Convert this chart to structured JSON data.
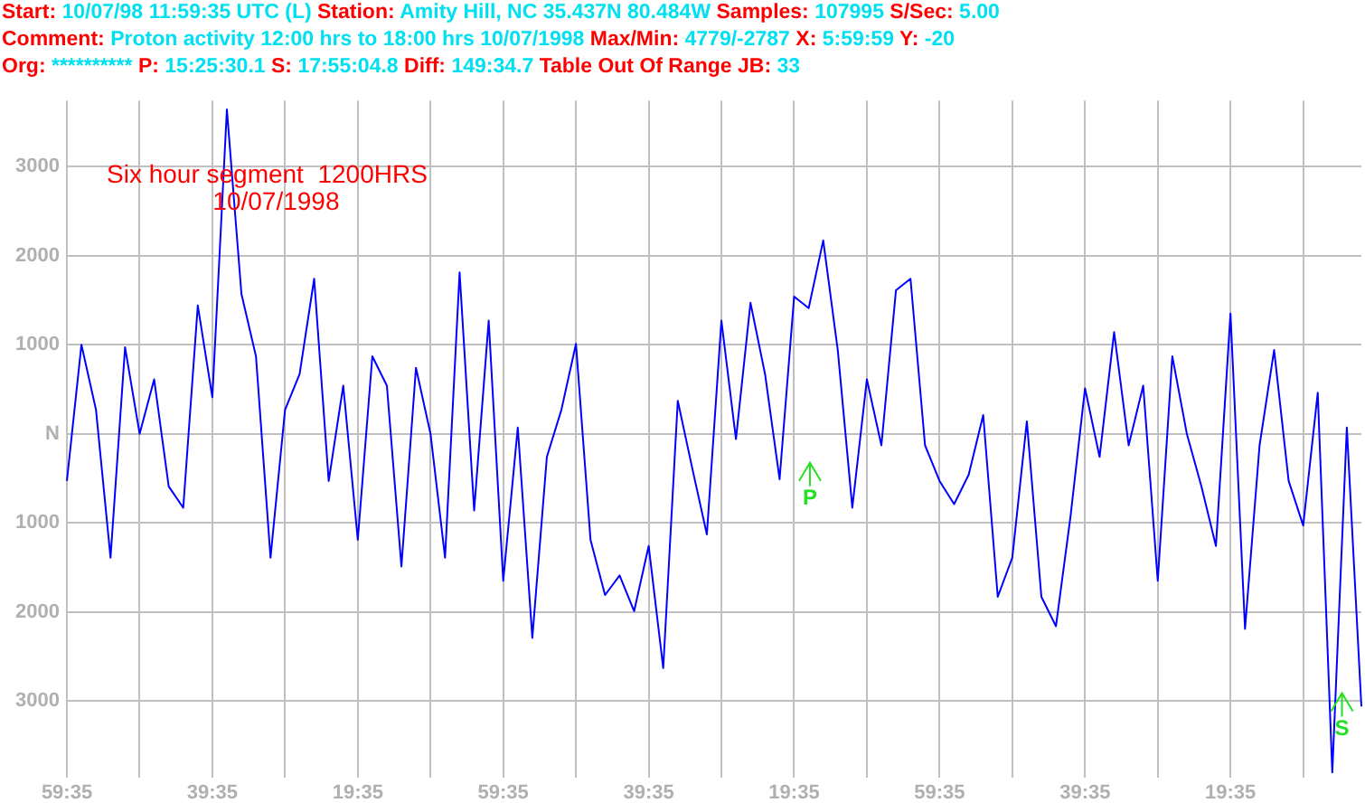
{
  "chart_data": {
    "type": "line",
    "title": "Six hour segment  1200HRS",
    "subtitle": "10/07/1998",
    "annotations": [
      "Start:",
      "10/07/98 11:59:35 UTC (L)",
      "Station:",
      "Amity Hill, NC 35.437N 80.484W",
      "Samples:",
      "107995",
      "S/Sec:",
      "5.00",
      "Comment:",
      "Proton activity 12:00 hrs to 18:00 hrs 10/07/1998",
      "Max/Min:",
      "4779/-2787",
      "X:",
      "5:59:59",
      "Y:",
      "-20",
      "Org:",
      "**********",
      "P:",
      "15:25:30.1",
      "S:",
      "17:55:04.8",
      "Diff:",
      "149:34.7",
      "Table Out Of Range  JB:",
      "33",
      "P",
      "S"
    ],
    "categories": [
      "59:35",
      null,
      null,
      null,
      null,
      null,
      null,
      null,
      null,
      null,
      "39:35",
      null,
      null,
      null,
      null,
      null,
      null,
      null,
      null,
      null,
      "19:35",
      null,
      null,
      null,
      null,
      null,
      null,
      null,
      null,
      null,
      "59:35",
      null,
      null,
      null,
      null,
      null,
      null,
      null,
      null,
      null,
      "39:35",
      null,
      null,
      null,
      null,
      null,
      null,
      null,
      null,
      null,
      "19:35",
      null,
      null,
      null,
      null,
      null,
      null,
      null,
      null,
      null,
      "59:35",
      null,
      null,
      null,
      null,
      null,
      null,
      null,
      null,
      null,
      "39:35",
      null,
      null,
      null,
      null,
      null,
      null,
      null,
      null,
      null,
      "19:35",
      null,
      null,
      null,
      null,
      null,
      null,
      null,
      null,
      null
    ],
    "series": [
      {
        "color": "#0000ff",
        "values": [
          -530,
          1000,
          270,
          -1390,
          970,
          0,
          610,
          -590,
          -830,
          1440,
          410,
          3640,
          1570,
          870,
          -1390,
          270,
          670,
          1740,
          -530,
          540,
          -1190,
          870,
          540,
          -1490,
          740,
          0,
          -1390,
          1810,
          -860,
          1270,
          -1650,
          70,
          -2290,
          -260,
          270,
          1010,
          -1190,
          -1810,
          -1590,
          -1990,
          -1260,
          -2630,
          370,
          -390,
          -1130,
          1270,
          -60,
          1470,
          670,
          -510,
          1540,
          1410,
          2170,
          940,
          -830,
          610,
          -130,
          1610,
          1740,
          -130,
          -530,
          -790,
          -460,
          210,
          -1830,
          -1390,
          140,
          -1830,
          -2160,
          -930,
          510,
          -260,
          1140,
          -130,
          540,
          -1650,
          870,
          0,
          -590,
          -1260,
          1350,
          -2190,
          -130,
          940,
          -530,
          -1030,
          460,
          -3800,
          70,
          -3060
        ]
      }
    ],
    "ylim": [
      -3860,
      3740
    ],
    "yticks": [
      3000,
      2000,
      1000,
      {
        "value": 0,
        "label": "N"
      },
      {
        "value": -1000,
        "label": "1000"
      },
      {
        "value": -2000,
        "label": "2000"
      },
      {
        "value": -3000,
        "label": "3000"
      }
    ],
    "grid": true,
    "legend": false,
    "marker": "none",
    "line_style": "solid"
  }
}
